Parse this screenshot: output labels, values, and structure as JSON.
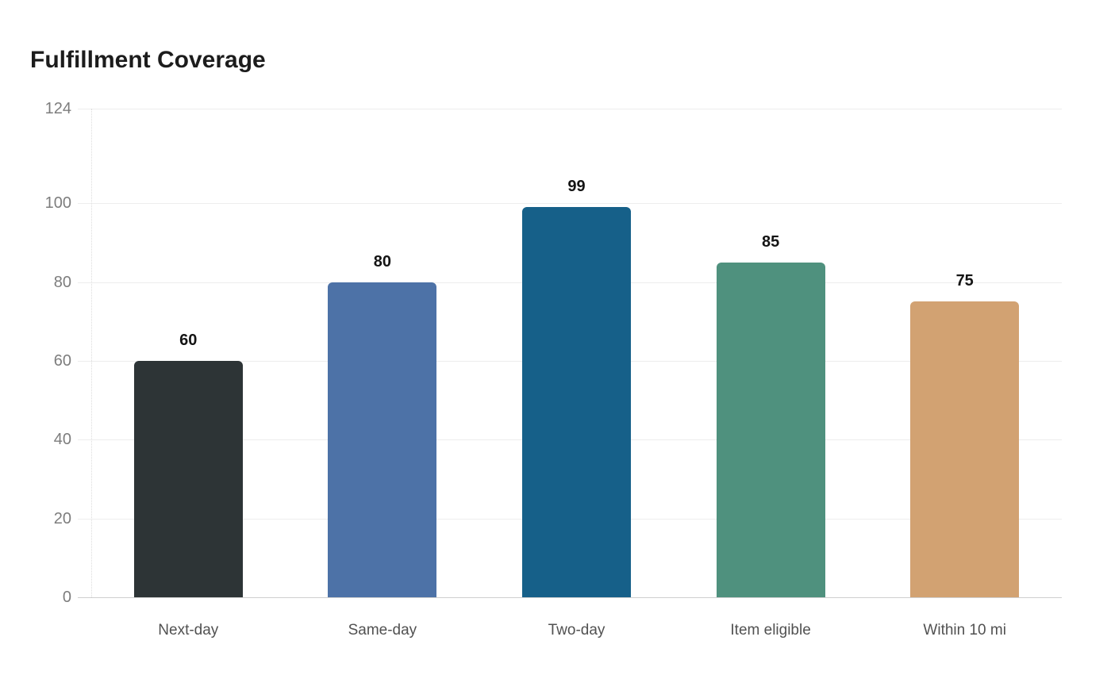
{
  "title": "Fulfillment Coverage",
  "chart_data": {
    "type": "bar",
    "title": "Fulfillment Coverage",
    "categories": [
      "Next-day",
      "Same-day",
      "Two-day",
      "Item eligible",
      "Within 10 mi"
    ],
    "values": [
      60,
      80,
      99,
      85,
      75
    ],
    "value_labels": [
      "60",
      "80",
      "99",
      "85",
      "75"
    ],
    "bar_colors": [
      "#2d3436",
      "#4d72a7",
      "#166089",
      "#4f917e",
      "#d2a272"
    ],
    "xlabel": "",
    "ylabel": "",
    "ylim": [
      0,
      124
    ],
    "yticks": [
      0,
      20,
      40,
      60,
      80,
      100,
      124
    ],
    "grid": true,
    "legend": false,
    "legend_position": "none",
    "orientation": "vertical"
  },
  "colors": {
    "background": "#ffffff",
    "title_text": "#1c1c1c",
    "grid_line": "#ededed",
    "baseline": "#cfcfcf",
    "y_axis_line": "#dcdcdc",
    "y_tick_text": "#7d7d7d",
    "x_tick_text": "#515151",
    "value_label_text": "#141414"
  }
}
